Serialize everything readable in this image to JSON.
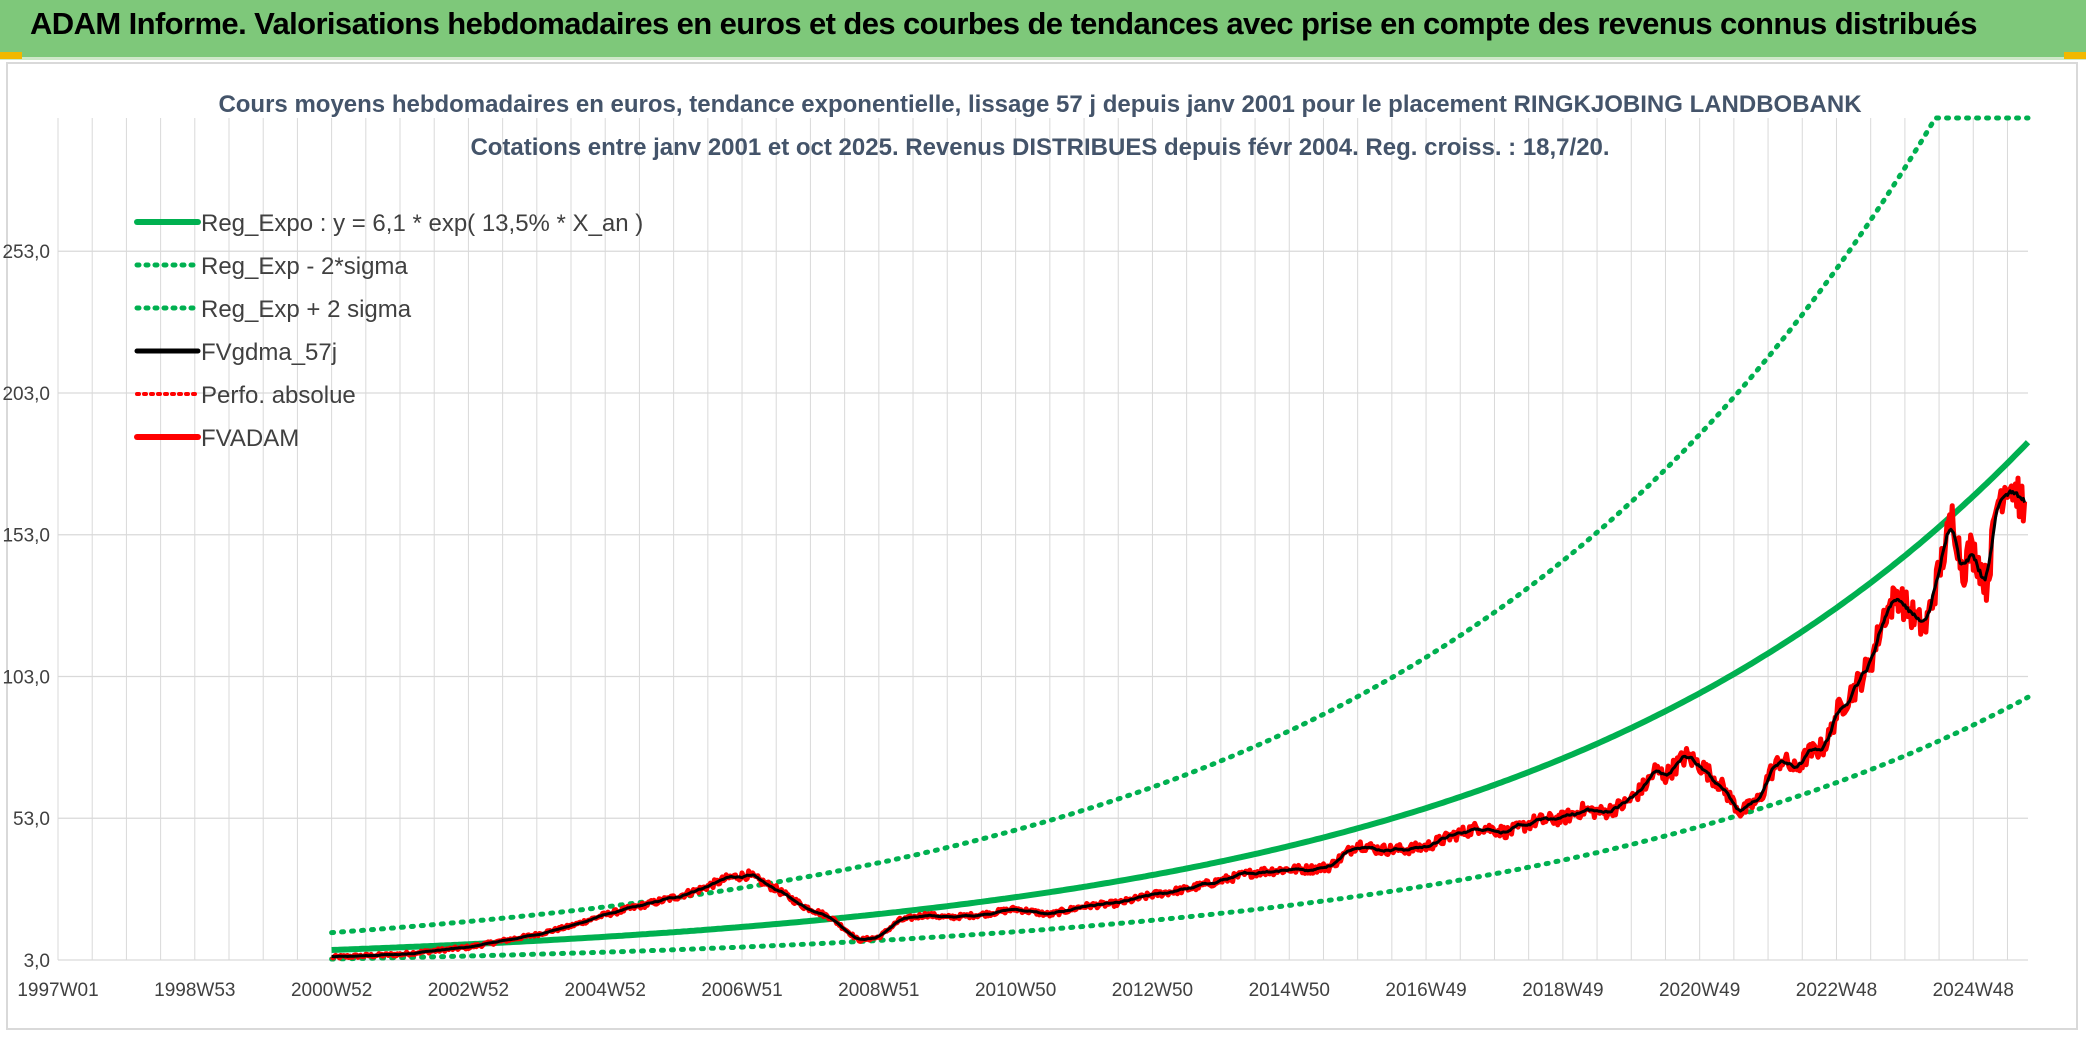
{
  "header": {
    "title": "ADAM Informe. Valorisations hebdomadaires en euros et des courbes de tendances avec prise en compte des revenus connus distribués"
  },
  "colors": {
    "banner": "#7ec87a",
    "trend": "#00b050",
    "smooth": "#000000",
    "price": "#ff0000",
    "grid": "#d9d9d9",
    "text": "#404040"
  },
  "chart_data": {
    "type": "line",
    "title": "Cours moyens hebdomadaires en euros, tendance exponentielle, lissage 57 j depuis janv 2001 pour le placement RINGKJOBING LANDBOBANK",
    "subtitle": "Cotations entre janv 2001 et oct 2025. Revenus DISTRIBUES depuis févr 2004. Reg. croiss. : 18,7/20.",
    "xlabel": "",
    "ylabel": "",
    "xlim": [
      1997.0,
      2025.8
    ],
    "ylim": [
      3.0,
      300.0
    ],
    "y_ticks": [
      3.0,
      53.0,
      103.0,
      153.0,
      203.0,
      253.0
    ],
    "y_tick_labels": [
      "3,0",
      "53,0",
      "103,0",
      "153,0",
      "203,0",
      "253,0"
    ],
    "x_tick_labels": [
      "1997W01",
      "1998W53",
      "2000W52",
      "2002W52",
      "2004W52",
      "2006W51",
      "2008W51",
      "2010W50",
      "2012W50",
      "2014W50",
      "2016W49",
      "2018W49",
      "2020W49",
      "2022W48",
      "2024W48"
    ],
    "x_tick_years": [
      1997.0,
      1999.0,
      2001.0,
      2003.0,
      2005.0,
      2007.0,
      2009.0,
      2011.0,
      2013.0,
      2015.0,
      2017.0,
      2019.0,
      2021.0,
      2023.0,
      2025.0
    ],
    "grid": true,
    "legend_position": "top-left",
    "regression": {
      "a": 6.1,
      "rate": 0.135,
      "x0_year": 2001.0,
      "sigma_factor": 1.94,
      "label_formula": "Reg_Expo : y = 6,1 * exp( 13,5% *  X_an )"
    },
    "series": [
      {
        "name": "Reg_Expo : y = 6,1 * exp( 13,5% *  X_an )",
        "style": "trend-solid"
      },
      {
        "name": "Reg_Exp - 2*sigma",
        "style": "trend-dotted"
      },
      {
        "name": "Reg_Exp + 2 sigma",
        "style": "trend-dotted"
      },
      {
        "name": "FVgdma_57j",
        "style": "smooth-solid"
      },
      {
        "name": "Perfo. absolue",
        "style": "price-dotted"
      },
      {
        "name": "FVADAM",
        "style": "price-solid",
        "x": [
          2001.0,
          2002.0,
          2003.0,
          2004.0,
          2004.5,
          2005.0,
          2005.5,
          2006.0,
          2006.4,
          2006.8,
          2007.1,
          2007.5,
          2007.9,
          2008.3,
          2008.7,
          2009.0,
          2009.3,
          2009.7,
          2010.0,
          2010.5,
          2011.0,
          2011.5,
          2012.0,
          2012.5,
          2013.0,
          2013.5,
          2014.0,
          2014.5,
          2015.0,
          2015.3,
          2015.6,
          2016.0,
          2016.3,
          2016.7,
          2017.0,
          2017.4,
          2017.8,
          2018.2,
          2018.6,
          2019.0,
          2019.3,
          2019.6,
          2019.9,
          2020.1,
          2020.25,
          2020.35,
          2020.5,
          2020.8,
          2021.0,
          2021.3,
          2021.6,
          2021.9,
          2022.0,
          2022.2,
          2022.4,
          2022.6,
          2022.8,
          2022.9,
          2023.0,
          2023.15,
          2023.3,
          2023.5,
          2023.7,
          2023.9,
          2024.0,
          2024.2,
          2024.3,
          2024.5,
          2024.7,
          2024.85,
          2024.95,
          2025.05,
          2025.2,
          2025.35,
          2025.5,
          2025.65,
          2025.75
        ],
        "values": [
          4.0,
          5.0,
          7.5,
          12.0,
          15.0,
          19.0,
          22.0,
          25.0,
          28.0,
          32.0,
          33.0,
          28.0,
          22.0,
          18.0,
          10.0,
          11.0,
          17.0,
          19.0,
          18.0,
          19.0,
          21.0,
          19.0,
          22.0,
          23.0,
          26.0,
          28.0,
          31.0,
          34.0,
          35.0,
          35.0,
          36.0,
          44.0,
          42.0,
          42.0,
          43.0,
          47.0,
          50.0,
          48.0,
          52.0,
          53.0,
          56.0,
          55.0,
          58.0,
          62.0,
          66.0,
          70.0,
          68.0,
          75.0,
          72.0,
          65.0,
          55.0,
          60.0,
          68.0,
          74.0,
          70.0,
          76.0,
          78.0,
          82.0,
          90.0,
          95.0,
          100.0,
          108.0,
          125.0,
          132.0,
          128.0,
          122.0,
          120.0,
          140.0,
          160.0,
          140.0,
          148.0,
          145.0,
          135.0,
          165.0,
          172.0,
          168.0,
          160.0
        ]
      }
    ]
  }
}
